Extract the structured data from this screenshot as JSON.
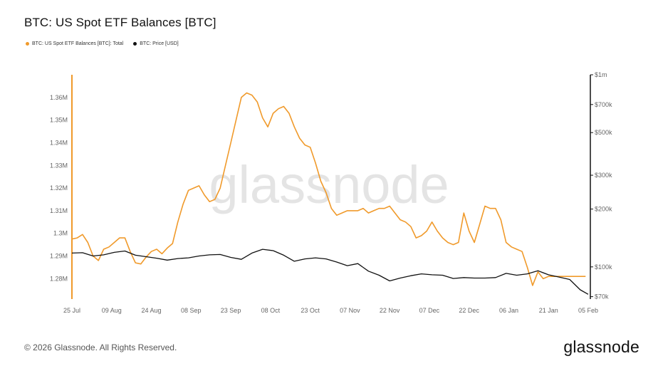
{
  "title": "BTC: US Spot ETF Balances [BTC]",
  "legend": [
    {
      "label": "BTC: US Spot ETF Balances [BTC]: Total",
      "color": "#f09a2b"
    },
    {
      "label": "BTC: Price [USD]",
      "color": "#111111"
    }
  ],
  "watermark": "glassnode",
  "footer": {
    "copyright": "© 2026 Glassnode. All Rights Reserved.",
    "brand": "glassnode"
  },
  "chart_data": {
    "type": "line",
    "x_ticks": [
      "25 Jul",
      "09 Aug",
      "24 Aug",
      "08 Sep",
      "23 Sep",
      "08 Oct",
      "23 Oct",
      "07 Nov",
      "22 Nov",
      "07 Dec",
      "22 Dec",
      "06 Jan",
      "21 Jan",
      "05 Feb"
    ],
    "y_left": {
      "ticks": [
        1280000,
        1290000,
        1300000,
        1310000,
        1320000,
        1330000,
        1340000,
        1350000,
        1360000
      ],
      "tick_labels": [
        "1.28M",
        "1.29M",
        "1.3M",
        "1.31M",
        "1.32M",
        "1.33M",
        "1.34M",
        "1.35M",
        "1.36M"
      ],
      "range": [
        1271000,
        1370000
      ]
    },
    "y_right": {
      "scale": "log",
      "ticks": [
        70000,
        100000,
        200000,
        300000,
        500000,
        700000,
        1000000
      ],
      "tick_labels": [
        "$70k",
        "$100k",
        "$200k",
        "$300k",
        "$500k",
        "$700k",
        "$1m"
      ],
      "range": [
        68000,
        1000000
      ]
    },
    "series": [
      {
        "name": "BTC: US Spot ETF Balances [BTC]: Total",
        "axis": "left",
        "color": "#f09a2b",
        "x": [
          "2025-07-25",
          "2025-07-27",
          "2025-07-29",
          "2025-07-31",
          "2025-08-02",
          "2025-08-04",
          "2025-08-06",
          "2025-08-08",
          "2025-08-10",
          "2025-08-12",
          "2025-08-14",
          "2025-08-16",
          "2025-08-18",
          "2025-08-20",
          "2025-08-22",
          "2025-08-24",
          "2025-08-26",
          "2025-08-28",
          "2025-08-30",
          "2025-09-01",
          "2025-09-03",
          "2025-09-05",
          "2025-09-07",
          "2025-09-09",
          "2025-09-11",
          "2025-09-13",
          "2025-09-15",
          "2025-09-17",
          "2025-09-19",
          "2025-09-21",
          "2025-09-23",
          "2025-09-25",
          "2025-09-27",
          "2025-09-29",
          "2025-10-01",
          "2025-10-03",
          "2025-10-05",
          "2025-10-07",
          "2025-10-09",
          "2025-10-11",
          "2025-10-13",
          "2025-10-15",
          "2025-10-17",
          "2025-10-19",
          "2025-10-21",
          "2025-10-23",
          "2025-10-25",
          "2025-10-27",
          "2025-10-29",
          "2025-10-31",
          "2025-11-02",
          "2025-11-04",
          "2025-11-06",
          "2025-11-08",
          "2025-11-10",
          "2025-11-12",
          "2025-11-14",
          "2025-11-16",
          "2025-11-18",
          "2025-11-20",
          "2025-11-22",
          "2025-11-24",
          "2025-11-26",
          "2025-11-28",
          "2025-11-30",
          "2025-12-02",
          "2025-12-04",
          "2025-12-06",
          "2025-12-08",
          "2025-12-10",
          "2025-12-12",
          "2025-12-14",
          "2025-12-16",
          "2025-12-18",
          "2025-12-20",
          "2025-12-22",
          "2025-12-24",
          "2025-12-26",
          "2025-12-28",
          "2025-12-30",
          "2026-01-01",
          "2026-01-03",
          "2026-01-05",
          "2026-01-07",
          "2026-01-09",
          "2026-01-11",
          "2026-01-13",
          "2026-01-15",
          "2026-01-17",
          "2026-01-19",
          "2026-01-21",
          "2026-01-23",
          "2026-01-25",
          "2026-01-27",
          "2026-01-29",
          "2026-01-31",
          "2026-02-02",
          "2026-02-04"
        ],
        "values": [
          1297500,
          1298000,
          1299500,
          1296000,
          1290000,
          1288000,
          1293000,
          1294000,
          1296000,
          1298000,
          1298000,
          1292000,
          1287000,
          1286500,
          1289500,
          1292000,
          1293000,
          1291000,
          1293500,
          1295500,
          1305000,
          1313000,
          1319000,
          1320000,
          1321000,
          1317000,
          1314000,
          1315000,
          1320000,
          1330000,
          1340000,
          1350000,
          1360000,
          1362000,
          1361000,
          1358000,
          1351000,
          1347000,
          1353000,
          1355000,
          1356000,
          1353000,
          1347000,
          1342000,
          1339000,
          1338000,
          1331000,
          1323000,
          1318000,
          1311000,
          1308000,
          1309000,
          1310000,
          1310000,
          1310000,
          1311000,
          1309000,
          1310000,
          1311000,
          1311000,
          1312000,
          1309000,
          1306000,
          1305000,
          1303000,
          1298000,
          1299000,
          1301000,
          1305000,
          1301000,
          1298000,
          1296000,
          1295000,
          1296000,
          1309000,
          1301000,
          1296000,
          1304000,
          1312000,
          1311000,
          1311000,
          1306000,
          1296000,
          1294000,
          1293000,
          1292000,
          1285000,
          1277000,
          1283000,
          1280000,
          1281000,
          1281000,
          1281000,
          1281000,
          1281000,
          1281000,
          1281000,
          1281000
        ],
        "note_skip": true
      }
    ]
  }
}
